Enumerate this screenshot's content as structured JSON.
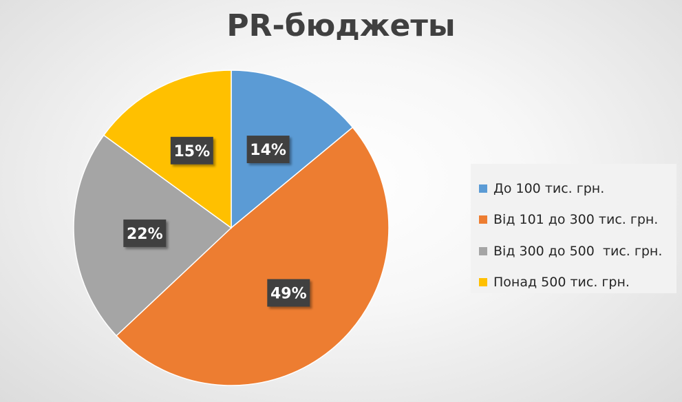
{
  "chart_data": {
    "type": "pie",
    "title": "PR-бюджеты",
    "legend_position": "right",
    "slices": [
      {
        "label": "До 100 тис. грн.",
        "value": 14,
        "display": "14%",
        "color": "#5b9bd5"
      },
      {
        "label": "Від 101 до 300 тис. грн.",
        "value": 49,
        "display": "49%",
        "color": "#ed7d31"
      },
      {
        "label": "Від 300 до 500  тис. грн.",
        "value": 22,
        "display": "22%",
        "color": "#a5a5a5"
      },
      {
        "label": "Понад 500 тис. грн.",
        "value": 15,
        "display": "15%",
        "color": "#ffc000"
      }
    ]
  }
}
